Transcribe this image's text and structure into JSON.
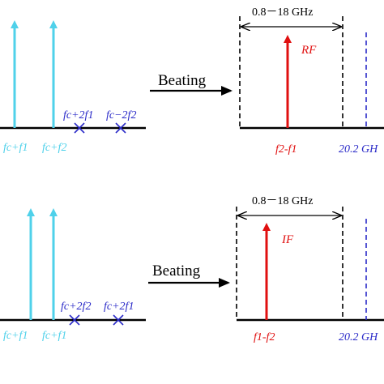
{
  "colors": {
    "cyan": "#4fd1ea",
    "red": "#e01010",
    "navy": "#2b2bc8",
    "black": "#000000"
  },
  "top": {
    "left_spectrum": {
      "arrow1_label": "fc+f1",
      "arrow2_label": "fc+f2",
      "x1_label": "fc+2f1",
      "x2_label": "fc−2f2"
    },
    "beating_label": "Beating",
    "right_spectrum": {
      "bandwidth_label": "0.8－18 GHz",
      "signal_name": "RF",
      "signal_freq": "f2-f1",
      "limit_label": "20.2 GH"
    }
  },
  "bottom": {
    "left_spectrum": {
      "arrow1_label": "fc+f1",
      "arrow2_label": "fc+f1",
      "x1_label": "fc+2f2",
      "x2_label": "fc+2f1"
    },
    "beating_label": "Beating",
    "right_spectrum": {
      "bandwidth_label": "0.8－18 GHz",
      "signal_name": "IF",
      "signal_freq": "f1-f2",
      "limit_label": "20.2 GH"
    }
  }
}
